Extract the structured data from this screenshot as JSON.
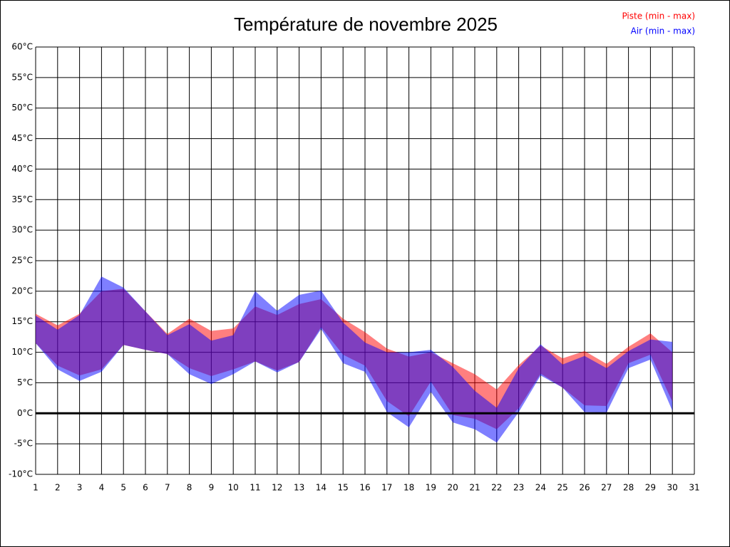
{
  "chart_data": {
    "type": "range-area",
    "title": "Température de novembre 2025",
    "x": [
      1,
      2,
      3,
      4,
      5,
      6,
      7,
      8,
      9,
      10,
      11,
      12,
      13,
      14,
      15,
      16,
      17,
      18,
      19,
      20,
      21,
      22,
      23,
      24,
      25,
      26,
      27,
      28,
      29,
      30
    ],
    "series": [
      {
        "name": "Piste (min - max)",
        "color": "#ff0000",
        "max": [
          16.3,
          14.4,
          16.3,
          20.0,
          20.4,
          16.7,
          13.0,
          15.5,
          13.5,
          13.9,
          17.5,
          16.1,
          17.9,
          18.7,
          15.5,
          13.3,
          10.6,
          9.3,
          10.0,
          8.2,
          6.4,
          3.9,
          7.9,
          11.1,
          9.0,
          10.2,
          8.1,
          10.9,
          13.1,
          10.0
        ],
        "min": [
          11.5,
          7.8,
          6.2,
          7.2,
          11.2,
          10.4,
          9.7,
          7.4,
          6.1,
          7.2,
          8.5,
          7.0,
          8.4,
          14.1,
          9.6,
          7.8,
          2.0,
          -0.5,
          5.2,
          -0.3,
          -0.9,
          -2.6,
          0.8,
          6.5,
          4.2,
          1.3,
          1.2,
          8.2,
          9.6,
          1.9
        ]
      },
      {
        "name": "Air (min - max)",
        "color": "#0000ff",
        "max": [
          16.0,
          13.7,
          16.1,
          22.4,
          20.6,
          16.7,
          12.8,
          14.6,
          11.9,
          12.8,
          20.0,
          16.8,
          19.4,
          20.1,
          14.9,
          11.6,
          10.0,
          10.0,
          10.4,
          7.6,
          3.7,
          0.9,
          7.4,
          11.3,
          8.0,
          9.4,
          7.4,
          10.2,
          12.1,
          11.7
        ],
        "min": [
          11.5,
          7.2,
          5.3,
          6.8,
          11.2,
          10.4,
          9.7,
          6.4,
          4.8,
          6.4,
          8.5,
          6.7,
          8.4,
          13.8,
          8.2,
          6.8,
          0.2,
          -2.3,
          3.5,
          -1.5,
          -2.6,
          -4.8,
          0.2,
          6.2,
          4.2,
          0.2,
          0.1,
          7.4,
          8.8,
          0.4
        ]
      }
    ],
    "xlim": [
      1,
      31
    ],
    "xticks": [
      1,
      2,
      3,
      4,
      5,
      6,
      7,
      8,
      9,
      10,
      11,
      12,
      13,
      14,
      15,
      16,
      17,
      18,
      19,
      20,
      21,
      22,
      23,
      24,
      25,
      26,
      27,
      28,
      29,
      30,
      31
    ],
    "ylim": [
      -10,
      60
    ],
    "yticks": [
      {
        "value": -10,
        "label": "-10°C"
      },
      {
        "value": -5,
        "label": "-5°C"
      },
      {
        "value": 0,
        "label": "0°C"
      },
      {
        "value": 5,
        "label": "5°C"
      },
      {
        "value": 10,
        "label": "10°C"
      },
      {
        "value": 15,
        "label": "15°C"
      },
      {
        "value": 20,
        "label": "20°C"
      },
      {
        "value": 25,
        "label": "25°C"
      },
      {
        "value": 30,
        "label": "30°C"
      },
      {
        "value": 35,
        "label": "35°C"
      },
      {
        "value": 40,
        "label": "40°C"
      },
      {
        "value": 45,
        "label": "45°C"
      },
      {
        "value": 50,
        "label": "50°C"
      },
      {
        "value": 55,
        "label": "55°C"
      },
      {
        "value": 60,
        "label": "60°C"
      }
    ],
    "grid": true
  }
}
